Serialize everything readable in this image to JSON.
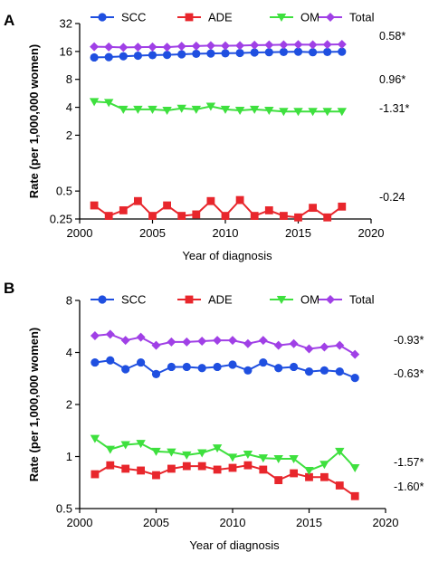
{
  "chart_data": [
    {
      "panel": "A",
      "type": "line",
      "ylabel": "Rate (per 1,000,000 women)",
      "xlabel": "Year of diagnosis",
      "yscale": "log2",
      "ylim": [
        0.25,
        32
      ],
      "yticks": [
        0.25,
        0.5,
        2,
        4,
        8,
        16,
        32
      ],
      "ytick_labels": [
        "0.25",
        "0.5",
        "2",
        "4",
        "8",
        "16",
        "32"
      ],
      "xlim": [
        2000,
        2020
      ],
      "xticks": [
        2000,
        2005,
        2010,
        2015,
        2020
      ],
      "x": [
        2001,
        2002,
        2003,
        2004,
        2005,
        2006,
        2007,
        2008,
        2009,
        2010,
        2011,
        2012,
        2013,
        2014,
        2015,
        2016,
        2017,
        2018
      ],
      "legend": "top",
      "series": [
        {
          "name": "SCC",
          "color": "#1f4fe0",
          "marker": "circle",
          "values": [
            13.8,
            13.9,
            14.2,
            14.4,
            14.6,
            14.7,
            14.9,
            15.1,
            15.2,
            15.3,
            15.4,
            15.6,
            15.7,
            15.8,
            15.9,
            15.7,
            15.8,
            15.9
          ],
          "annotation": "0.96*"
        },
        {
          "name": "ADE",
          "color": "#e8262c",
          "marker": "square",
          "values": [
            0.35,
            0.27,
            0.31,
            0.39,
            0.27,
            0.35,
            0.27,
            0.28,
            0.39,
            0.27,
            0.4,
            0.27,
            0.31,
            0.27,
            0.26,
            0.33,
            0.26,
            0.34
          ],
          "annotation": "-0.24"
        },
        {
          "name": "OM",
          "color": "#3ee03e",
          "marker": "triangle-down",
          "values": [
            4.6,
            4.5,
            3.8,
            3.8,
            3.8,
            3.7,
            3.9,
            3.8,
            4.1,
            3.8,
            3.7,
            3.8,
            3.7,
            3.6,
            3.6,
            3.6,
            3.6,
            3.6
          ],
          "annotation": "-1.31*"
        },
        {
          "name": "Total",
          "color": "#a040e6",
          "marker": "diamond",
          "values": [
            18.0,
            17.9,
            17.7,
            17.8,
            17.9,
            17.8,
            18.2,
            18.3,
            18.5,
            18.4,
            18.5,
            18.7,
            18.8,
            18.9,
            19.0,
            18.9,
            19.0,
            19.1
          ],
          "annotation": "0.58*"
        }
      ]
    },
    {
      "panel": "B",
      "type": "line",
      "ylabel": "Rate (per 1,000,000 women)",
      "xlabel": "Year of diagnosis",
      "yscale": "log2",
      "ylim": [
        0.5,
        8
      ],
      "yticks": [
        0.5,
        1,
        2,
        4,
        8
      ],
      "ytick_labels": [
        "0.5",
        "1",
        "2",
        "4",
        "8"
      ],
      "xlim": [
        2000,
        2020
      ],
      "xticks": [
        2000,
        2005,
        2010,
        2015,
        2020
      ],
      "x": [
        2001,
        2002,
        2003,
        2004,
        2005,
        2006,
        2007,
        2008,
        2009,
        2010,
        2011,
        2012,
        2013,
        2014,
        2015,
        2016,
        2017,
        2018
      ],
      "legend": "top",
      "series": [
        {
          "name": "SCC",
          "color": "#1f4fe0",
          "marker": "circle",
          "values": [
            3.5,
            3.6,
            3.2,
            3.5,
            3.0,
            3.3,
            3.3,
            3.25,
            3.3,
            3.4,
            3.15,
            3.5,
            3.25,
            3.3,
            3.1,
            3.15,
            3.1,
            2.85
          ],
          "annotation": "-0.63*"
        },
        {
          "name": "ADE",
          "color": "#e8262c",
          "marker": "square",
          "values": [
            0.79,
            0.89,
            0.85,
            0.83,
            0.78,
            0.85,
            0.88,
            0.88,
            0.84,
            0.86,
            0.89,
            0.84,
            0.73,
            0.8,
            0.76,
            0.76,
            0.68,
            0.59
          ],
          "annotation": "-1.60*"
        },
        {
          "name": "OM",
          "color": "#3ee03e",
          "marker": "triangle-down",
          "values": [
            1.27,
            1.1,
            1.17,
            1.19,
            1.07,
            1.06,
            1.02,
            1.05,
            1.12,
            0.99,
            1.03,
            0.98,
            0.97,
            0.97,
            0.83,
            0.9,
            1.07,
            0.86
          ],
          "annotation": "-1.57*"
        },
        {
          "name": "Total",
          "color": "#a040e6",
          "marker": "diamond",
          "values": [
            5.0,
            5.1,
            4.7,
            4.9,
            4.4,
            4.6,
            4.6,
            4.65,
            4.7,
            4.7,
            4.5,
            4.7,
            4.4,
            4.5,
            4.2,
            4.3,
            4.4,
            3.9
          ],
          "annotation": "-0.93*"
        }
      ]
    }
  ]
}
